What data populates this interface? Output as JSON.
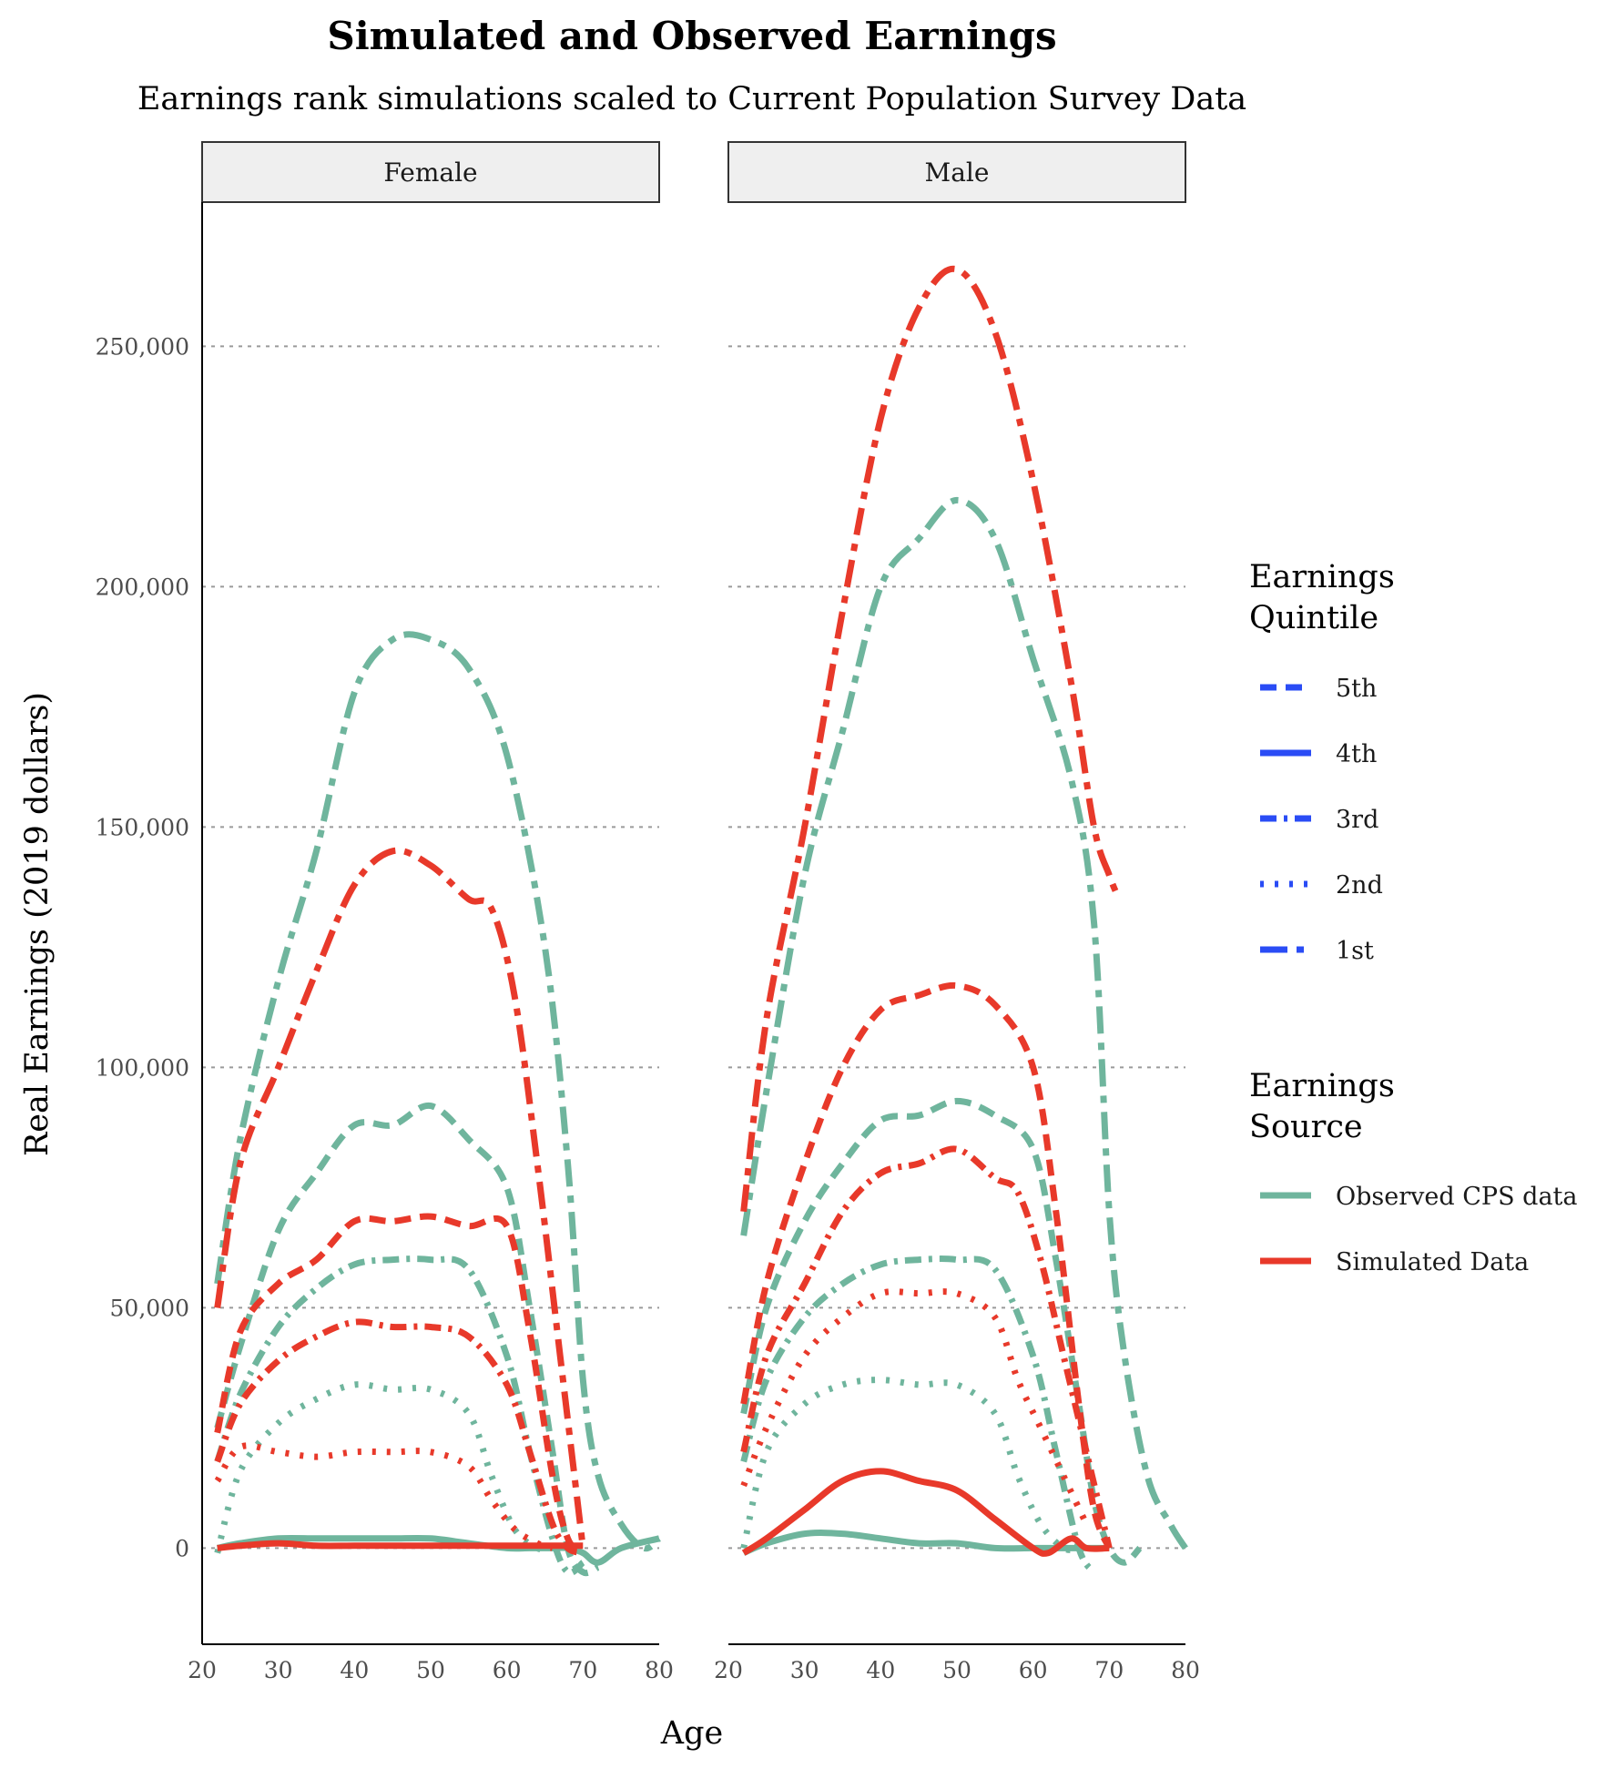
{
  "chart_data": {
    "type": "line",
    "title": "Simulated and Observed Earnings",
    "subtitle": "Earnings rank simulations scaled to Current Population Survey Data",
    "xlabel": "Age",
    "ylabel": "Real Earnings (2019 dollars)",
    "xlim": [
      20,
      80
    ],
    "ylim": [
      -20000,
      280000
    ],
    "xticks": [
      "20",
      "30",
      "40",
      "50",
      "60",
      "70",
      "80"
    ],
    "yticks": [
      "0",
      "50,000",
      "100,000",
      "150,000",
      "200,000",
      "250,000"
    ],
    "grid": "horizontal dotted",
    "facets": [
      "Female",
      "Male"
    ],
    "legend": {
      "position": "right",
      "quintile_title": "Earnings\nQuintile",
      "quintile_title_lines": [
        "Earnings",
        "Quintile"
      ],
      "quintiles": [
        "5th",
        "4th",
        "3rd",
        "2nd",
        "1st"
      ],
      "quintile_color": "#2a4cf5",
      "source_title_lines": [
        "Earnings",
        "Source"
      ],
      "sources": [
        "Observed CPS data",
        "Simulated Data"
      ],
      "source_colors": {
        "Observed CPS data": "#6fb59d",
        "Simulated Data": "#e8392a"
      }
    },
    "series": [
      {
        "facet": "Female",
        "source": "Observed CPS data",
        "quintile": "5th",
        "x": [
          22,
          25,
          30,
          35,
          40,
          45,
          50,
          55,
          60,
          63,
          66,
          68,
          70,
          72
        ],
        "y": [
          25000,
          42000,
          66000,
          78000,
          88000,
          88000,
          92000,
          85000,
          75000,
          50000,
          20000,
          0,
          -5000,
          -4000
        ]
      },
      {
        "facet": "Female",
        "source": "Observed CPS data",
        "quintile": "4th",
        "x": [
          22,
          25,
          30,
          35,
          40,
          45,
          50,
          55,
          60,
          63,
          66,
          68,
          70,
          72,
          75,
          80
        ],
        "y": [
          0,
          1000,
          2000,
          2000,
          2000,
          2000,
          2000,
          1000,
          0,
          0,
          0,
          0,
          -1000,
          -3000,
          0,
          2000
        ]
      },
      {
        "facet": "Female",
        "source": "Observed CPS data",
        "quintile": "3rd",
        "x": [
          22,
          25,
          30,
          35,
          40,
          45,
          50,
          55,
          60,
          63,
          66,
          68,
          70
        ],
        "y": [
          18000,
          32000,
          46000,
          54000,
          59000,
          60000,
          60000,
          58000,
          40000,
          20000,
          2000,
          -5000,
          -3000
        ]
      },
      {
        "facet": "Female",
        "source": "Observed CPS data",
        "quintile": "2nd",
        "x": [
          22,
          25,
          30,
          35,
          40,
          45,
          50,
          55,
          58,
          61,
          64,
          66
        ],
        "y": [
          -1000,
          16000,
          26000,
          31000,
          34000,
          33000,
          33000,
          28000,
          15000,
          4000,
          0,
          0
        ]
      },
      {
        "facet": "Female",
        "source": "Observed CPS data",
        "quintile": "1st",
        "x": [
          22,
          25,
          30,
          35,
          40,
          45,
          50,
          55,
          60,
          65,
          68,
          70,
          72,
          75,
          78,
          80
        ],
        "y": [
          55000,
          85000,
          118000,
          145000,
          178000,
          189000,
          189000,
          183000,
          165000,
          125000,
          80000,
          35000,
          15000,
          5000,
          0,
          2000
        ]
      },
      {
        "facet": "Female",
        "source": "Simulated Data",
        "quintile": "5th",
        "x": [
          22,
          25,
          30,
          35,
          40,
          45,
          50,
          55,
          60,
          63,
          66,
          68,
          70
        ],
        "y": [
          24000,
          45000,
          55000,
          60000,
          68000,
          68000,
          69000,
          67000,
          67000,
          45000,
          15000,
          2000,
          -1000
        ]
      },
      {
        "facet": "Female",
        "source": "Simulated Data",
        "quintile": "4th",
        "x": [
          22,
          25,
          30,
          35,
          40,
          45,
          50,
          55,
          60,
          63,
          66,
          68,
          70
        ],
        "y": [
          0,
          500,
          1000,
          500,
          500,
          500,
          500,
          500,
          500,
          500,
          500,
          500,
          500
        ]
      },
      {
        "facet": "Female",
        "source": "Simulated Data",
        "quintile": "3rd",
        "x": [
          22,
          25,
          30,
          35,
          40,
          45,
          50,
          55,
          60,
          63,
          66,
          68,
          70
        ],
        "y": [
          18000,
          30000,
          39000,
          44000,
          47000,
          46000,
          46000,
          44000,
          34000,
          20000,
          5000,
          0,
          -1000
        ]
      },
      {
        "facet": "Female",
        "source": "Simulated Data",
        "quintile": "2nd",
        "x": [
          22,
          25,
          30,
          35,
          40,
          45,
          50,
          55,
          58,
          61,
          64,
          66
        ],
        "y": [
          14000,
          21000,
          20000,
          19000,
          20000,
          20000,
          20000,
          17000,
          10000,
          4000,
          1000,
          0
        ]
      },
      {
        "facet": "Female",
        "source": "Simulated Data",
        "quintile": "1st",
        "x": [
          22,
          25,
          30,
          35,
          40,
          45,
          50,
          55,
          58,
          61,
          64,
          67,
          70
        ],
        "y": [
          50000,
          80000,
          100000,
          120000,
          138000,
          145000,
          142000,
          135000,
          133000,
          115000,
          80000,
          40000,
          0
        ]
      },
      {
        "facet": "Male",
        "source": "Observed CPS data",
        "quintile": "5th",
        "x": [
          22,
          25,
          30,
          35,
          40,
          45,
          50,
          55,
          60,
          63,
          66,
          68,
          70,
          72,
          74
        ],
        "y": [
          28000,
          50000,
          68000,
          80000,
          89000,
          90000,
          93000,
          90000,
          83000,
          60000,
          30000,
          10000,
          0,
          -3000,
          0
        ]
      },
      {
        "facet": "Male",
        "source": "Observed CPS data",
        "quintile": "4th",
        "x": [
          22,
          25,
          30,
          35,
          40,
          45,
          50,
          55,
          60,
          65,
          70
        ],
        "y": [
          -1000,
          1000,
          3000,
          3000,
          2000,
          1000,
          1000,
          0,
          0,
          0,
          0
        ]
      },
      {
        "facet": "Male",
        "source": "Observed CPS data",
        "quintile": "3rd",
        "x": [
          22,
          25,
          30,
          35,
          40,
          45,
          50,
          55,
          60,
          63,
          66,
          68
        ],
        "y": [
          18000,
          35000,
          48000,
          55000,
          59000,
          60000,
          60000,
          58000,
          40000,
          20000,
          0,
          -5000
        ]
      },
      {
        "facet": "Male",
        "source": "Observed CPS data",
        "quintile": "2nd",
        "x": [
          22,
          25,
          30,
          35,
          40,
          45,
          50,
          55,
          58,
          61,
          64,
          66
        ],
        "y": [
          0,
          20000,
          30000,
          34000,
          35000,
          34000,
          34000,
          28000,
          15000,
          5000,
          0,
          0
        ]
      },
      {
        "facet": "Male",
        "source": "Observed CPS data",
        "quintile": "1st",
        "x": [
          22,
          25,
          30,
          35,
          40,
          45,
          50,
          55,
          60,
          65,
          68,
          70,
          72,
          75,
          78,
          80
        ],
        "y": [
          65000,
          95000,
          140000,
          170000,
          200000,
          210000,
          218000,
          210000,
          185000,
          160000,
          130000,
          70000,
          40000,
          15000,
          5000,
          0
        ]
      },
      {
        "facet": "Male",
        "source": "Simulated Data",
        "quintile": "5th",
        "x": [
          22,
          25,
          30,
          35,
          40,
          45,
          50,
          55,
          60,
          63,
          66,
          68,
          70
        ],
        "y": [
          30000,
          55000,
          80000,
          100000,
          112000,
          115000,
          117000,
          113000,
          100000,
          70000,
          30000,
          8000,
          0
        ]
      },
      {
        "facet": "Male",
        "source": "Simulated Data",
        "quintile": "4th",
        "x": [
          22,
          25,
          30,
          35,
          40,
          45,
          50,
          55,
          60,
          62,
          65,
          67,
          70
        ],
        "y": [
          -1000,
          2000,
          8000,
          14000,
          16000,
          14000,
          12000,
          6000,
          0,
          -1000,
          2000,
          0,
          0
        ]
      },
      {
        "facet": "Male",
        "source": "Simulated Data",
        "quintile": "3rd",
        "x": [
          22,
          25,
          30,
          35,
          40,
          45,
          50,
          55,
          58,
          61,
          64,
          67,
          70
        ],
        "y": [
          20000,
          40000,
          55000,
          70000,
          78000,
          80000,
          83000,
          77000,
          74000,
          60000,
          40000,
          20000,
          0
        ]
      },
      {
        "facet": "Male",
        "source": "Simulated Data",
        "quintile": "2nd",
        "x": [
          22,
          25,
          30,
          35,
          40,
          45,
          50,
          55,
          58,
          61,
          64,
          67
        ],
        "y": [
          13000,
          25000,
          40000,
          48000,
          53000,
          53000,
          53000,
          48000,
          35000,
          25000,
          15000,
          5000
        ]
      },
      {
        "facet": "Male",
        "source": "Simulated Data",
        "quintile": "1st",
        "x": [
          22,
          25,
          30,
          35,
          40,
          45,
          50,
          55,
          60,
          65,
          68,
          70,
          71
        ],
        "y": [
          70000,
          110000,
          150000,
          195000,
          235000,
          258000,
          266000,
          253000,
          222000,
          180000,
          150000,
          140000,
          136000
        ]
      }
    ]
  }
}
